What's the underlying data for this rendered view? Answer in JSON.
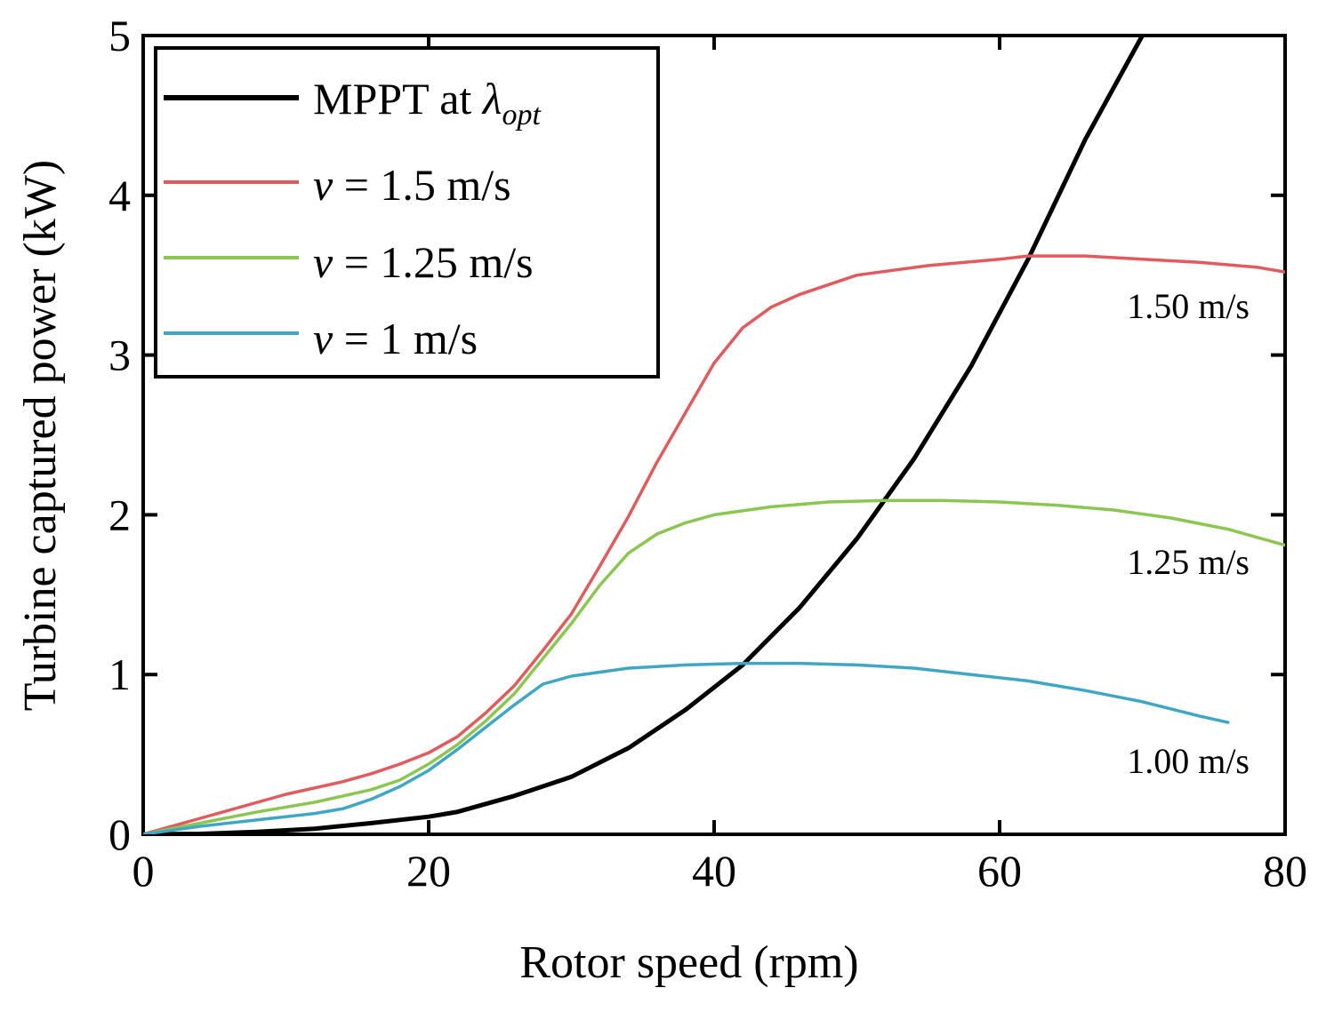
{
  "chart_data": {
    "type": "line",
    "xlabel": "Rotor speed (rpm)",
    "ylabel": "Turbine captured power (kW)",
    "xlim": [
      0,
      80
    ],
    "ylim": [
      0,
      5
    ],
    "xticks": [
      0,
      20,
      40,
      60,
      80
    ],
    "yticks": [
      0,
      1,
      2,
      3,
      4,
      5
    ],
    "grid": false,
    "legend_position": "top-left",
    "series": [
      {
        "name": "MPPT at λopt",
        "legend_main": "MPPT at ",
        "legend_symbol": "λ",
        "legend_sub": "opt",
        "color": "#000000",
        "x": [
          0,
          4,
          8,
          12,
          16,
          20,
          22,
          26,
          30,
          34,
          38,
          42,
          46,
          50,
          54,
          58,
          62,
          66,
          70,
          71
        ],
        "y": [
          0,
          0.003,
          0.015,
          0.035,
          0.07,
          0.11,
          0.14,
          0.24,
          0.36,
          0.54,
          0.78,
          1.06,
          1.42,
          1.85,
          2.35,
          2.93,
          3.6,
          4.35,
          5.0,
          5.2
        ]
      },
      {
        "name": "v = 1.5 m/s",
        "legend_var": "v",
        "legend_rest": " = 1.5 m/s",
        "end_label": "1.50 m/s",
        "color": "#e05a5e",
        "x": [
          0,
          4,
          8,
          10,
          14,
          16,
          18,
          20,
          22,
          24,
          26,
          28,
          30,
          32,
          34,
          36,
          38,
          40,
          42,
          44,
          46,
          50,
          55,
          60,
          62,
          66,
          70,
          74,
          78,
          80
        ],
        "y": [
          0,
          0.1,
          0.2,
          0.25,
          0.33,
          0.38,
          0.44,
          0.51,
          0.61,
          0.76,
          0.93,
          1.15,
          1.38,
          1.68,
          1.99,
          2.33,
          2.64,
          2.95,
          3.17,
          3.3,
          3.38,
          3.5,
          3.56,
          3.6,
          3.62,
          3.62,
          3.6,
          3.58,
          3.55,
          3.52
        ]
      },
      {
        "name": "v = 1.25 m/s",
        "legend_var": "v",
        "legend_rest": " = 1.25 m/s",
        "end_label": "1.25 m/s",
        "color": "#8cc652",
        "x": [
          0,
          4,
          8,
          12,
          16,
          18,
          20,
          22,
          24,
          26,
          28,
          30,
          32,
          34,
          36,
          38,
          40,
          44,
          48,
          52,
          56,
          60,
          64,
          68,
          72,
          76,
          80
        ],
        "y": [
          0,
          0.07,
          0.14,
          0.2,
          0.28,
          0.34,
          0.44,
          0.56,
          0.71,
          0.88,
          1.1,
          1.32,
          1.56,
          1.76,
          1.88,
          1.95,
          2.0,
          2.05,
          2.08,
          2.09,
          2.09,
          2.08,
          2.06,
          2.03,
          1.98,
          1.91,
          1.81
        ]
      },
      {
        "name": "v = 1 m/s",
        "legend_var": "v",
        "legend_rest": " = 1 m/s",
        "end_label": "1.00 m/s",
        "color": "#3fa7c4",
        "x": [
          0,
          4,
          8,
          12,
          14,
          16,
          18,
          20,
          22,
          24,
          26,
          28,
          30,
          34,
          38,
          42,
          46,
          50,
          54,
          58,
          62,
          66,
          70,
          74,
          76
        ],
        "y": [
          0,
          0.05,
          0.09,
          0.13,
          0.16,
          0.22,
          0.3,
          0.4,
          0.53,
          0.67,
          0.81,
          0.94,
          0.99,
          1.04,
          1.06,
          1.07,
          1.07,
          1.06,
          1.04,
          1.0,
          0.96,
          0.9,
          0.83,
          0.74,
          0.7
        ]
      }
    ]
  }
}
